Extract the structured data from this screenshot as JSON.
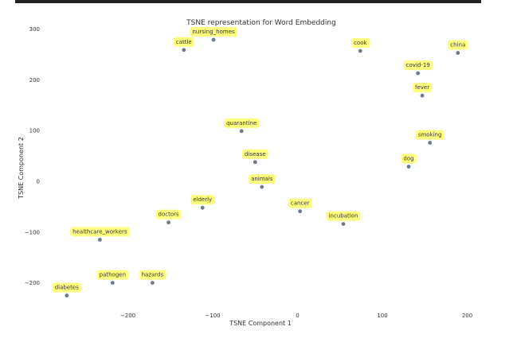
{
  "chart_data": {
    "type": "scatter",
    "title": "TSNE representation for Word Embedding",
    "xlabel": "TSNE Component 1",
    "ylabel": "TSNE Component 2",
    "xlim": [
      -285,
      205
    ],
    "ylim": [
      -245,
      310
    ],
    "xticks": [
      -200,
      -100,
      0,
      100,
      200
    ],
    "xtick_labels": [
      "−200",
      "−100",
      "0",
      "100",
      "200"
    ],
    "yticks": [
      300,
      200,
      100,
      0,
      -100,
      -200
    ],
    "ytick_labels": [
      "300",
      "200",
      "100",
      "0",
      "−100",
      "−200"
    ],
    "grid": false,
    "point_color": "#6b7b8c",
    "label_bg_color": "#ffff80",
    "points": [
      {
        "label": "cattle",
        "x": -134,
        "y": 259
      },
      {
        "label": "nursing_homes",
        "x": -99,
        "y": 279
      },
      {
        "label": "cook",
        "x": 74,
        "y": 257
      },
      {
        "label": "china",
        "x": 189,
        "y": 253
      },
      {
        "label": "covid-19",
        "x": 142,
        "y": 213
      },
      {
        "label": "fever",
        "x": 147,
        "y": 169
      },
      {
        "label": "quarantine",
        "x": -66,
        "y": 99
      },
      {
        "label": "smoking",
        "x": 156,
        "y": 76
      },
      {
        "label": "disease",
        "x": -50,
        "y": 38
      },
      {
        "label": "dog",
        "x": 131,
        "y": 29
      },
      {
        "label": "animals",
        "x": -42,
        "y": -11
      },
      {
        "label": "elderly",
        "x": -112,
        "y": -52
      },
      {
        "label": "cancer",
        "x": 3,
        "y": -59
      },
      {
        "label": "doctors",
        "x": -152,
        "y": -81
      },
      {
        "label": "incubation",
        "x": 54,
        "y": -84
      },
      {
        "label": "healthcare_workers",
        "x": -233,
        "y": -115
      },
      {
        "label": "pathogen",
        "x": -218,
        "y": -200
      },
      {
        "label": "hazards",
        "x": -171,
        "y": -200
      },
      {
        "label": "diabetes",
        "x": -272,
        "y": -225
      }
    ]
  }
}
